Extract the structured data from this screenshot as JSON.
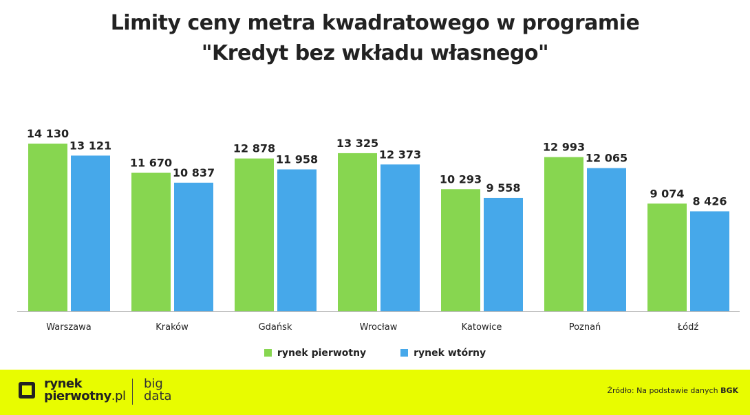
{
  "chart_data": {
    "type": "bar",
    "title": [
      "Limity ceny metra kwadratowego w programie",
      "\"Kredyt bez wkładu własnego\""
    ],
    "categories": [
      "Warszawa",
      "Kraków",
      "Gdańsk",
      "Wrocław",
      "Katowice",
      "Poznań",
      "Łódź"
    ],
    "series": [
      {
        "name": "rynek pierwotny",
        "color": "#87d650",
        "values": [
          14130,
          11670,
          12878,
          13325,
          10293,
          12993,
          9074
        ],
        "labels": [
          "14 130",
          "11 670",
          "12 878",
          "13 325",
          "10 293",
          "12 993",
          "9 074"
        ]
      },
      {
        "name": "rynek wtórny",
        "color": "#46a8ea",
        "values": [
          13121,
          10837,
          11958,
          12373,
          9558,
          12065,
          8426
        ],
        "labels": [
          "13 121",
          "10 837",
          "11 958",
          "12 373",
          "9 558",
          "12 065",
          "8 426"
        ]
      }
    ],
    "ylim": [
      0,
      15000
    ],
    "grid": false,
    "legend": "bottom",
    "xlabel": "",
    "ylabel": ""
  },
  "footer": {
    "brand_line1": "rynek",
    "brand_line2": "pierwotny",
    "brand_suffix": ".pl",
    "bigdata_line1": "big",
    "bigdata_line2": "data",
    "source_prefix": "Źródło: Na podstawie danych ",
    "source_bold": "BGK"
  }
}
